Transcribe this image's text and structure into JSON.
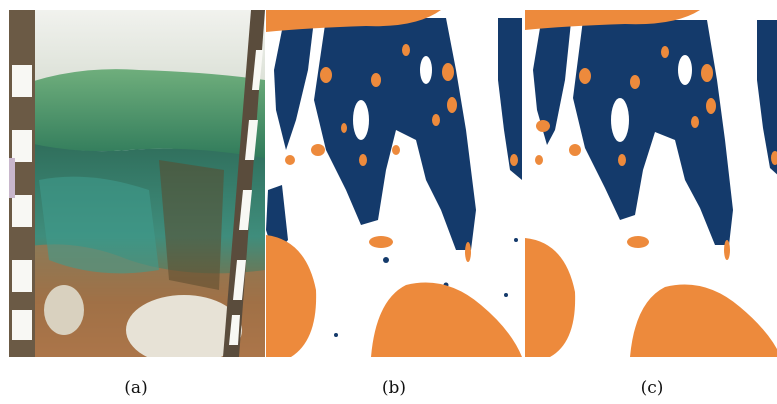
{
  "figure": {
    "captions": [
      "(a)",
      "(b)",
      "(c)"
    ]
  },
  "colors": {
    "segment_dark": "#143a6b",
    "segment_orange": "#ed8a3c",
    "background": "#ffffff",
    "grass": "#4e9a68",
    "soil_teal": "#3f8d7c",
    "soil_brown": "#9a6a3e",
    "sky": "#e9ece6"
  },
  "panels": [
    {
      "id": "a",
      "kind": "photograph",
      "subject": "soil-profile-with-measuring-poles"
    },
    {
      "id": "b",
      "kind": "segmentation-map",
      "variant": "noisy"
    },
    {
      "id": "c",
      "kind": "segmentation-map",
      "variant": "smoothed"
    }
  ]
}
